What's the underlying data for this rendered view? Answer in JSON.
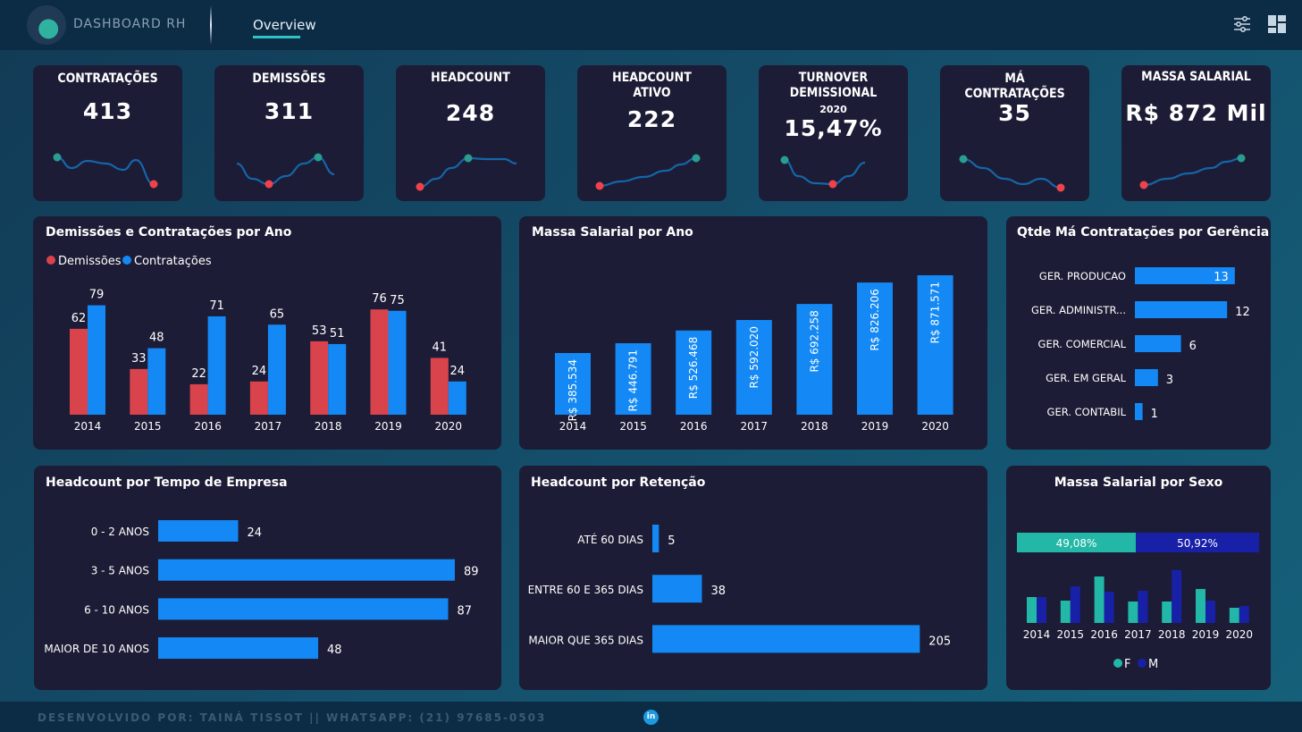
{
  "header": {
    "brand": "DASHBOARD RH",
    "tab": "Overview",
    "icons": [
      "filter-sliders-icon",
      "dashboard-layout-icon"
    ]
  },
  "colors": {
    "red": "#d9434b",
    "blue": "#1489f5",
    "teal": "#22b7a6",
    "navy": "#1820a8",
    "card": "#1c1c36",
    "spark_line": "#1565a8",
    "spark_good": "#2a9d8f",
    "spark_bad": "#f0424b"
  },
  "kpis": [
    {
      "title": "CONTRATAÇÕES",
      "value": "413"
    },
    {
      "title": "DEMISSÕES",
      "value": "311"
    },
    {
      "title": "HEADCOUNT",
      "value": "248"
    },
    {
      "title": "HEADCOUNT ATIVO",
      "value": "222"
    },
    {
      "title": "TURNOVER DEMISSIONAL",
      "subtitle": "2020",
      "value": "15,47%"
    },
    {
      "title": "MÁ CONTRATAÇÕES",
      "value": "35"
    },
    {
      "title": "MASSA SALARIAL",
      "value": "R$ 872 Mil"
    }
  ],
  "panels": {
    "demissoes": {
      "title": "Demissões e Contratações por Ano",
      "legend": [
        "Demissões",
        "Contratações"
      ]
    },
    "massa": {
      "title": "Massa Salarial por Ano"
    },
    "ma_contr": {
      "title": "Qtde Má Contratações por Gerência"
    },
    "tempo": {
      "title": "Headcount por Tempo de Empresa"
    },
    "retencao": {
      "title": "Headcount por Retenção"
    },
    "sexo": {
      "title": "Massa Salarial por Sexo",
      "legend": [
        "F",
        "M"
      ]
    }
  },
  "chart_data": [
    {
      "id": "demissoes-contratacoes",
      "type": "bar",
      "categories": [
        "2014",
        "2015",
        "2016",
        "2017",
        "2018",
        "2019",
        "2020"
      ],
      "series": [
        {
          "name": "Demissões",
          "values": [
            62,
            33,
            22,
            24,
            53,
            76,
            41
          ]
        },
        {
          "name": "Contratações",
          "values": [
            79,
            48,
            71,
            65,
            51,
            75,
            24
          ]
        }
      ]
    },
    {
      "id": "massa-salarial-ano",
      "type": "bar",
      "categories": [
        "2014",
        "2015",
        "2016",
        "2017",
        "2018",
        "2019",
        "2020"
      ],
      "values": [
        385534,
        446791,
        526468,
        592020,
        692258,
        826206,
        871571
      ],
      "labels": [
        "R$ 385.534",
        "R$ 446.791",
        "R$ 526.468",
        "R$ 592.020",
        "R$ 692.258",
        "R$ 826.206",
        "R$ 871.571"
      ]
    },
    {
      "id": "ma-contratacoes-gerencia",
      "type": "bar",
      "orientation": "horizontal",
      "categories": [
        "GER. PRODUCAO",
        "GER. ADMINISTR...",
        "GER. COMERCIAL",
        "GER. EM GERAL",
        "GER. CONTABIL"
      ],
      "values": [
        13,
        12,
        6,
        3,
        1
      ]
    },
    {
      "id": "headcount-tempo",
      "type": "bar",
      "orientation": "horizontal",
      "categories": [
        "0 - 2 ANOS",
        "3 - 5 ANOS",
        "6 - 10 ANOS",
        "MAIOR DE 10 ANOS"
      ],
      "values": [
        24,
        89,
        87,
        48
      ]
    },
    {
      "id": "headcount-retencao",
      "type": "bar",
      "orientation": "horizontal",
      "categories": [
        "ATÉ 60 DIAS",
        "ENTRE 60 E 365 DIAS",
        "MAIOR QUE 365 DIAS"
      ],
      "values": [
        5,
        38,
        205
      ]
    },
    {
      "id": "massa-sexo",
      "type": "bar",
      "stacked_share": [
        {
          "name": "F",
          "label": "49,08%",
          "value": 49.08
        },
        {
          "name": "M",
          "label": "50,92%",
          "value": 50.92
        }
      ],
      "categories": [
        "2014",
        "2015",
        "2016",
        "2017",
        "2018",
        "2019",
        "2020"
      ],
      "series": [
        {
          "name": "F",
          "values": [
            29,
            25,
            52,
            24,
            24,
            38,
            17
          ]
        },
        {
          "name": "M",
          "values": [
            29,
            41,
            35,
            36,
            59,
            25,
            19
          ]
        }
      ]
    }
  ],
  "footer": {
    "text": "DESENVOLVIDO POR: TAINÁ TISSOT || WHATSAPP: (21) 97685-0503",
    "icon": "linkedin-icon",
    "icon_text": "in"
  }
}
